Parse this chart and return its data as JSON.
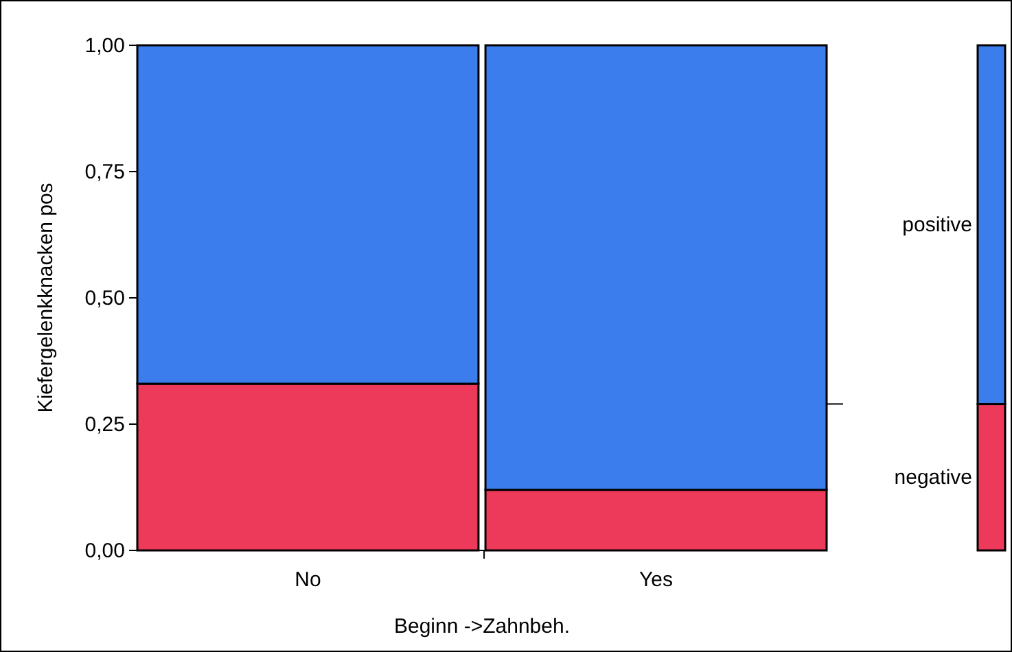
{
  "chart_data": [
    {
      "type": "bar",
      "stacked": true,
      "xlabel": "Beginn ->Zahnbeh.",
      "ylabel": "Kiefergelenkknacken pos",
      "categories": [
        "No",
        "Yes"
      ],
      "ylim": [
        0,
        1
      ],
      "yticks": [
        {
          "value": 0,
          "label": "0,00"
        },
        {
          "value": 0.25,
          "label": "0,25"
        },
        {
          "value": 0.5,
          "label": "0,50"
        },
        {
          "value": 0.75,
          "label": "0,75"
        },
        {
          "value": 1,
          "label": "1,00"
        }
      ],
      "series": [
        {
          "color": "#ee3a5a",
          "values": [
            0.33,
            0.12
          ]
        },
        {
          "color": "#3b7ded",
          "values": [
            0.67,
            0.88
          ]
        }
      ]
    },
    {
      "type": "bar",
      "stacked": true,
      "tick_labels": false,
      "ylim": [
        0,
        1
      ],
      "categories": [
        null
      ],
      "series": [
        {
          "name": "negative",
          "color": "#ee3a5a",
          "values": [
            0.29
          ]
        },
        {
          "name": "positive",
          "color": "#3b7ded",
          "values": [
            0.71
          ]
        }
      ]
    }
  ]
}
